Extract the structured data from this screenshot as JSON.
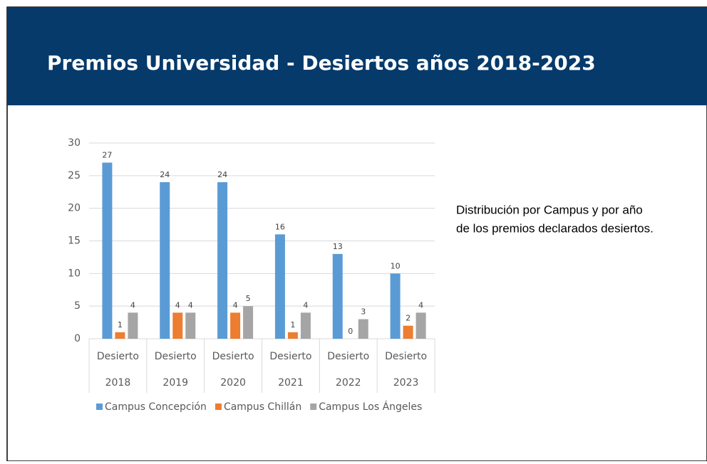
{
  "slide_title": "Premios Universidad - Desiertos años 2018-2023",
  "side_text": [
    "Distribución por Campus y por año",
    "de los premios declarados desiertos."
  ],
  "chart_data": {
    "type": "bar",
    "categories": [
      [
        "Desierto",
        "2018"
      ],
      [
        "Desierto",
        "2019"
      ],
      [
        "Desierto",
        "2020"
      ],
      [
        "Desierto",
        "2021"
      ],
      [
        "Desierto",
        "2022"
      ],
      [
        "Desierto",
        "2023"
      ]
    ],
    "series": [
      {
        "name": "Campus Concepción",
        "color": "#5b9bd5",
        "values": [
          27,
          24,
          24,
          16,
          13,
          10
        ]
      },
      {
        "name": "Campus Chillán",
        "color": "#ed7d31",
        "values": [
          1,
          4,
          4,
          1,
          0,
          2
        ]
      },
      {
        "name": "Campus Los Ángeles",
        "color": "#a5a5a5",
        "values": [
          4,
          4,
          5,
          4,
          3,
          4
        ]
      }
    ],
    "ylim": [
      0,
      30
    ],
    "yticks": [
      0,
      5,
      10,
      15,
      20,
      25,
      30
    ],
    "grid": true,
    "legend": "bottom"
  }
}
